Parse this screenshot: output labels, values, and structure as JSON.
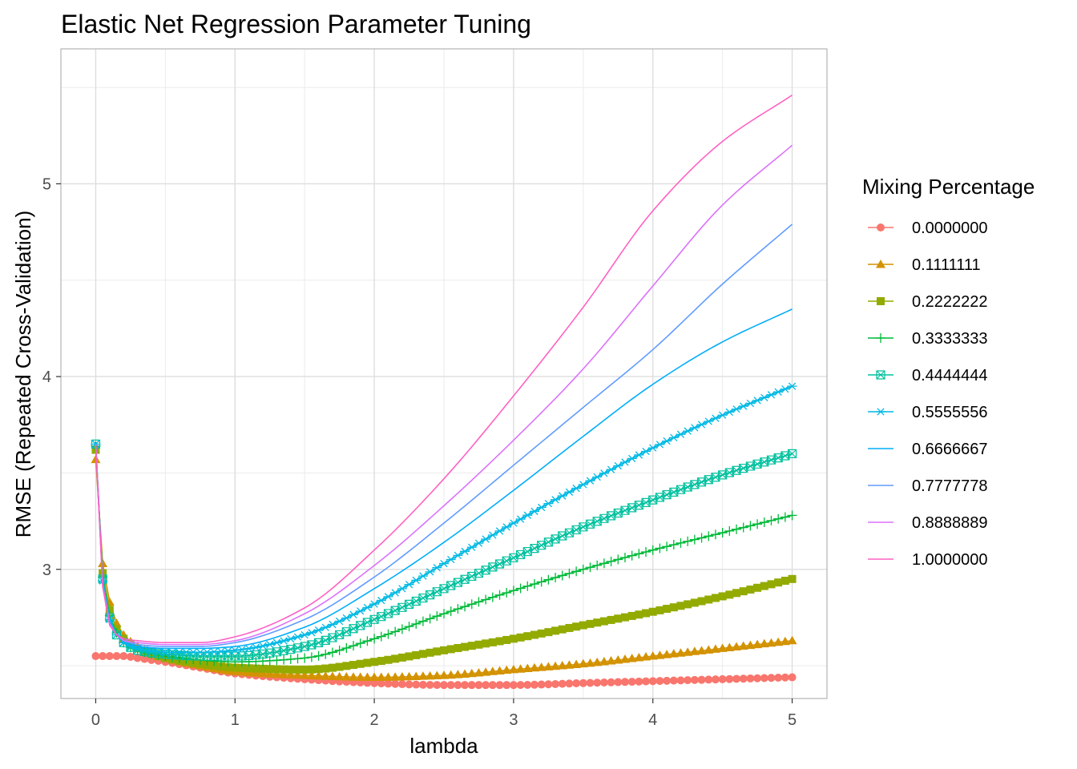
{
  "chart_data": {
    "type": "line",
    "title": "Elastic Net Regression Parameter Tuning",
    "xlabel": "lambda",
    "ylabel": "RMSE (Repeated Cross-Validation)",
    "xlim": [
      -0.25,
      5.25
    ],
    "ylim": [
      2.33,
      5.7
    ],
    "x_ticks": [
      "0",
      "1",
      "2",
      "3",
      "4",
      "5"
    ],
    "y_ticks": [
      "3",
      "4",
      "5"
    ],
    "grid": true,
    "legend": {
      "title": "Mixing Percentage",
      "position": "right"
    },
    "x": [
      0,
      0.05,
      0.1,
      0.15,
      0.2,
      0.3,
      0.5,
      0.75,
      1,
      1.5,
      2,
      2.5,
      3,
      3.5,
      4,
      4.5,
      5
    ],
    "series": [
      {
        "name": "0.0000000",
        "color": "#F8766D",
        "marker": "circle",
        "values": [
          2.55,
          2.55,
          2.55,
          2.55,
          2.55,
          2.54,
          2.52,
          2.49,
          2.46,
          2.43,
          2.41,
          2.4,
          2.4,
          2.41,
          2.42,
          2.43,
          2.44
        ]
      },
      {
        "name": "0.1111111",
        "color": "#D39200",
        "marker": "triangle",
        "values": [
          3.57,
          3.03,
          2.83,
          2.72,
          2.66,
          2.6,
          2.54,
          2.5,
          2.47,
          2.45,
          2.44,
          2.45,
          2.48,
          2.51,
          2.55,
          2.59,
          2.63
        ]
      },
      {
        "name": "0.2222222",
        "color": "#93AA00",
        "marker": "square",
        "values": [
          3.62,
          2.98,
          2.79,
          2.69,
          2.64,
          2.59,
          2.54,
          2.51,
          2.49,
          2.48,
          2.52,
          2.58,
          2.64,
          2.71,
          2.78,
          2.86,
          2.95
        ]
      },
      {
        "name": "0.3333333",
        "color": "#00BA38",
        "marker": "plus",
        "values": [
          3.64,
          2.96,
          2.76,
          2.67,
          2.62,
          2.58,
          2.55,
          2.53,
          2.52,
          2.54,
          2.64,
          2.77,
          2.89,
          3.0,
          3.1,
          3.19,
          3.28
        ]
      },
      {
        "name": "0.4444444",
        "color": "#00C19F",
        "marker": "boxcross",
        "values": [
          3.65,
          2.95,
          2.75,
          2.66,
          2.62,
          2.58,
          2.56,
          2.55,
          2.55,
          2.6,
          2.74,
          2.9,
          3.06,
          3.22,
          3.36,
          3.49,
          3.6
        ]
      },
      {
        "name": "0.5555556",
        "color": "#00B9E3",
        "marker": "asterisk",
        "values": [
          3.65,
          2.94,
          2.74,
          2.66,
          2.62,
          2.59,
          2.57,
          2.57,
          2.58,
          2.66,
          2.82,
          3.03,
          3.24,
          3.44,
          3.63,
          3.8,
          3.95
        ]
      },
      {
        "name": "0.6666667",
        "color": "#00ADFA",
        "marker": "none",
        "values": [
          3.65,
          2.93,
          2.73,
          2.66,
          2.62,
          2.6,
          2.59,
          2.59,
          2.6,
          2.7,
          2.9,
          3.14,
          3.41,
          3.69,
          3.96,
          4.18,
          4.35
        ]
      },
      {
        "name": "0.7777778",
        "color": "#619CFF",
        "marker": "none",
        "values": [
          3.65,
          2.92,
          2.72,
          2.66,
          2.63,
          2.61,
          2.6,
          2.6,
          2.62,
          2.74,
          2.96,
          3.24,
          3.54,
          3.84,
          4.14,
          4.48,
          4.79
        ]
      },
      {
        "name": "0.8888889",
        "color": "#DB72FB",
        "marker": "none",
        "values": [
          3.65,
          2.92,
          2.72,
          2.66,
          2.63,
          2.62,
          2.61,
          2.61,
          2.63,
          2.77,
          3.02,
          3.33,
          3.67,
          4.04,
          4.47,
          4.89,
          5.2
        ]
      },
      {
        "name": "1.0000000",
        "color": "#FF61C3",
        "marker": "none",
        "values": [
          3.65,
          2.91,
          2.71,
          2.66,
          2.64,
          2.63,
          2.62,
          2.62,
          2.65,
          2.8,
          3.1,
          3.47,
          3.9,
          4.36,
          4.86,
          5.22,
          5.46
        ]
      }
    ]
  }
}
